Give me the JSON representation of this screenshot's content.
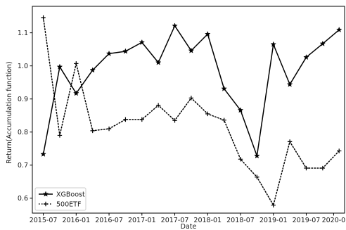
{
  "chart_data": {
    "type": "line",
    "title": "",
    "xlabel": "Date",
    "ylabel": "Return(Accumulation function)",
    "x_ticks": [
      "2015-07",
      "2016-01",
      "2016-07",
      "2017-01",
      "2017-07",
      "2018-01",
      "2018-07",
      "2019-01",
      "2019-07",
      "2020-0"
    ],
    "y_ticks": [
      "0.6",
      "0.7",
      "0.8",
      "0.9",
      "1.0",
      "1.1"
    ],
    "xlim": [
      "2015-05",
      "2020-02"
    ],
    "ylim": [
      0.555,
      1.18
    ],
    "grid": false,
    "legend_position": "lower-left",
    "series": [
      {
        "name": "XGBoost",
        "color": "#000000",
        "line_style": "solid",
        "marker": "star",
        "points": [
          {
            "x": "2015-07",
            "y": 0.733
          },
          {
            "x": "2015-10",
            "y": 0.997
          },
          {
            "x": "2016-01",
            "y": 0.917
          },
          {
            "x": "2016-04",
            "y": 0.987
          },
          {
            "x": "2016-07",
            "y": 1.037
          },
          {
            "x": "2016-10",
            "y": 1.044
          },
          {
            "x": "2017-01",
            "y": 1.071
          },
          {
            "x": "2017-04",
            "y": 1.01
          },
          {
            "x": "2017-07",
            "y": 1.121
          },
          {
            "x": "2017-10",
            "y": 1.046
          },
          {
            "x": "2018-01",
            "y": 1.096
          },
          {
            "x": "2018-04",
            "y": 0.931
          },
          {
            "x": "2018-07",
            "y": 0.866
          },
          {
            "x": "2018-10",
            "y": 0.728
          },
          {
            "x": "2019-01",
            "y": 1.065
          },
          {
            "x": "2019-04",
            "y": 0.944
          },
          {
            "x": "2019-07",
            "y": 1.026
          },
          {
            "x": "2019-10",
            "y": 1.067
          },
          {
            "x": "2020-01",
            "y": 1.109
          }
        ]
      },
      {
        "name": "500ETF",
        "color": "#000000",
        "line_style": "dotted",
        "marker": "plus",
        "points": [
          {
            "x": "2015-07",
            "y": 1.146
          },
          {
            "x": "2015-10",
            "y": 0.79
          },
          {
            "x": "2016-01",
            "y": 1.007
          },
          {
            "x": "2016-04",
            "y": 0.804
          },
          {
            "x": "2016-07",
            "y": 0.81
          },
          {
            "x": "2016-10",
            "y": 0.838
          },
          {
            "x": "2017-01",
            "y": 0.838
          },
          {
            "x": "2017-04",
            "y": 0.881
          },
          {
            "x": "2017-07",
            "y": 0.835
          },
          {
            "x": "2017-10",
            "y": 0.903
          },
          {
            "x": "2018-01",
            "y": 0.855
          },
          {
            "x": "2018-04",
            "y": 0.836
          },
          {
            "x": "2018-07",
            "y": 0.718
          },
          {
            "x": "2018-10",
            "y": 0.664
          },
          {
            "x": "2019-01",
            "y": 0.579
          },
          {
            "x": "2019-04",
            "y": 0.771
          },
          {
            "x": "2019-07",
            "y": 0.691
          },
          {
            "x": "2019-10",
            "y": 0.691
          },
          {
            "x": "2020-01",
            "y": 0.743
          }
        ]
      }
    ]
  }
}
